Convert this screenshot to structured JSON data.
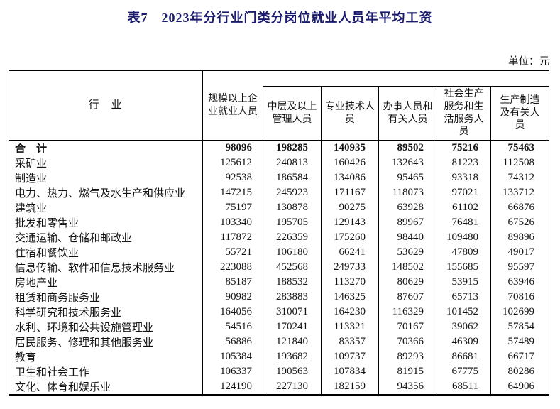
{
  "page": {
    "title": "表7　2023年分行业门类分岗位就业人员年平均工资",
    "unit_note": "单位：元"
  },
  "colors": {
    "title_text": "#1c1c6e",
    "body_text": "#131313",
    "border": "#000000",
    "background": "#ffffff"
  },
  "table": {
    "header": {
      "industry": "行　业",
      "columns": [
        "规模以上企\n业就业人员",
        "中层及以上\n管理人员",
        "专业技术人\n员",
        "办事人员和\n有关人员",
        "社会生产\n服务和生\n活服务人\n员",
        "生产制造\n及有关人\n员"
      ]
    },
    "rows": [
      {
        "label": "合　计",
        "bold": true,
        "values": [
          "98096",
          "198285",
          "140935",
          "89502",
          "75216",
          "75463"
        ]
      },
      {
        "label": "采矿业",
        "bold": false,
        "values": [
          "125612",
          "240813",
          "160426",
          "132643",
          "81223",
          "112508"
        ]
      },
      {
        "label": "制造业",
        "bold": false,
        "values": [
          "92538",
          "186584",
          "134086",
          "95465",
          "93318",
          "74312"
        ]
      },
      {
        "label": "电力、热力、燃气及水生产和供应业",
        "bold": false,
        "values": [
          "147215",
          "245923",
          "171167",
          "118073",
          "97021",
          "133712"
        ]
      },
      {
        "label": "建筑业",
        "bold": false,
        "values": [
          "75197",
          "130878",
          "90275",
          "63928",
          "61102",
          "66876"
        ]
      },
      {
        "label": "批发和零售业",
        "bold": false,
        "values": [
          "103340",
          "195705",
          "129143",
          "89967",
          "76481",
          "67526"
        ]
      },
      {
        "label": "交通运输、仓储和邮政业",
        "bold": false,
        "values": [
          "117872",
          "226359",
          "175260",
          "98440",
          "109480",
          "89896"
        ]
      },
      {
        "label": "住宿和餐饮业",
        "bold": false,
        "values": [
          "55721",
          "106180",
          "66241",
          "53629",
          "47809",
          "49017"
        ]
      },
      {
        "label": "信息传输、软件和信息技术服务业",
        "bold": false,
        "values": [
          "223088",
          "452568",
          "249733",
          "148502",
          "155685",
          "95597"
        ]
      },
      {
        "label": "房地产业",
        "bold": false,
        "values": [
          "85187",
          "188532",
          "113270",
          "80629",
          "53915",
          "63946"
        ]
      },
      {
        "label": "租赁和商务服务业",
        "bold": false,
        "values": [
          "90982",
          "283883",
          "146325",
          "87607",
          "65713",
          "70816"
        ]
      },
      {
        "label": "科学研究和技术服务业",
        "bold": false,
        "values": [
          "164056",
          "310071",
          "164230",
          "116329",
          "101452",
          "102699"
        ]
      },
      {
        "label": "水利、环境和公共设施管理业",
        "bold": false,
        "values": [
          "54516",
          "170241",
          "113321",
          "70167",
          "39062",
          "57854"
        ]
      },
      {
        "label": "居民服务、修理和其他服务业",
        "bold": false,
        "values": [
          "56886",
          "121840",
          "83357",
          "70366",
          "46309",
          "57489"
        ]
      },
      {
        "label": "教育",
        "bold": false,
        "values": [
          "105384",
          "193682",
          "109737",
          "89293",
          "86681",
          "66717"
        ]
      },
      {
        "label": "卫生和社会工作",
        "bold": false,
        "values": [
          "106337",
          "190563",
          "107834",
          "81915",
          "67775",
          "80286"
        ]
      },
      {
        "label": "文化、体育和娱乐业",
        "bold": false,
        "values": [
          "124190",
          "227130",
          "182159",
          "94356",
          "68511",
          "64906"
        ]
      }
    ]
  }
}
